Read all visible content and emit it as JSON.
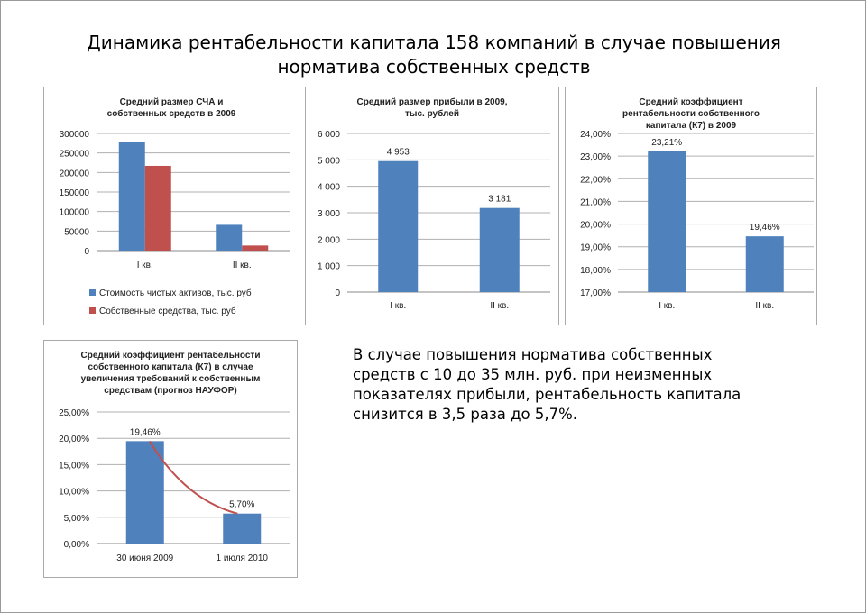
{
  "slide": {
    "title_line1": "Динамика рентабельности капитала 158 компаний в случае повышения",
    "title_line2": "норматива собственных средств",
    "note": "В случае повышения норматива собственных средств с 10 до 35 млн. руб. при неизменных показателях прибыли, рентабельность капитала снизится в 3,5 раза до 5,7%."
  },
  "chart_data": [
    {
      "type": "bar",
      "title": "Средний размер СЧА и собственных средств в 2009",
      "categories": [
        "I кв.",
        "II кв."
      ],
      "series": [
        {
          "name": "Стоимость чистых активов, тыс. руб",
          "color": "#4f81bd",
          "values": [
            277000,
            66000
          ]
        },
        {
          "name": "Собственные средства, тыс. руб",
          "color": "#c0504d",
          "values": [
            217000,
            13000
          ]
        }
      ],
      "ylim": [
        0,
        300000
      ],
      "yticks": [
        0,
        50000,
        100000,
        150000,
        200000,
        250000,
        300000
      ],
      "ytick_labels": [
        "0",
        "50000",
        "100000",
        "150000",
        "200000",
        "250000",
        "300000"
      ],
      "legend": "bottom",
      "grid": true
    },
    {
      "type": "bar",
      "title": "Средний размер прибыли в 2009, тыс. рублей",
      "categories": [
        "I кв.",
        "II кв."
      ],
      "series": [
        {
          "name": "Прибыль",
          "color": "#4f81bd",
          "values": [
            4953,
            3181
          ]
        }
      ],
      "data_labels": [
        "4 953",
        "3 181"
      ],
      "ylim": [
        0,
        6000
      ],
      "yticks": [
        0,
        1000,
        2000,
        3000,
        4000,
        5000,
        6000
      ],
      "ytick_labels": [
        "0",
        "1 000",
        "2 000",
        "3 000",
        "4 000",
        "5 000",
        "6 000"
      ],
      "grid": true
    },
    {
      "type": "bar",
      "title": "Средний коэффициент рентабельности собственного капитала (К7) в 2009",
      "categories": [
        "I кв.",
        "II кв."
      ],
      "series": [
        {
          "name": "К7",
          "color": "#4f81bd",
          "values": [
            23.21,
            19.46
          ]
        }
      ],
      "data_labels": [
        "23,21%",
        "19,46%"
      ],
      "ylim": [
        17,
        24
      ],
      "yticks": [
        17,
        18,
        19,
        20,
        21,
        22,
        23,
        24
      ],
      "ytick_labels": [
        "17,00%",
        "18,00%",
        "19,00%",
        "20,00%",
        "21,00%",
        "22,00%",
        "23,00%",
        "24,00%"
      ],
      "grid": true
    },
    {
      "type": "bar",
      "title": "Средний коэффициент рентабельности собственного капитала (К7) в случае увеличения требований к собственным средствам (прогноз НАУФОР)",
      "categories": [
        "30 июня 2009",
        "1 июля 2010"
      ],
      "series": [
        {
          "name": "К7",
          "color": "#4f81bd",
          "values": [
            19.46,
            5.7
          ]
        }
      ],
      "data_labels": [
        "19,46%",
        "5,70%"
      ],
      "trendline": {
        "color": "#c0504d"
      },
      "ylim": [
        0,
        25
      ],
      "yticks": [
        0,
        5,
        10,
        15,
        20,
        25
      ],
      "ytick_labels": [
        "0,00%",
        "5,00%",
        "10,00%",
        "15,00%",
        "20,00%",
        "25,00%"
      ],
      "grid": true
    }
  ]
}
